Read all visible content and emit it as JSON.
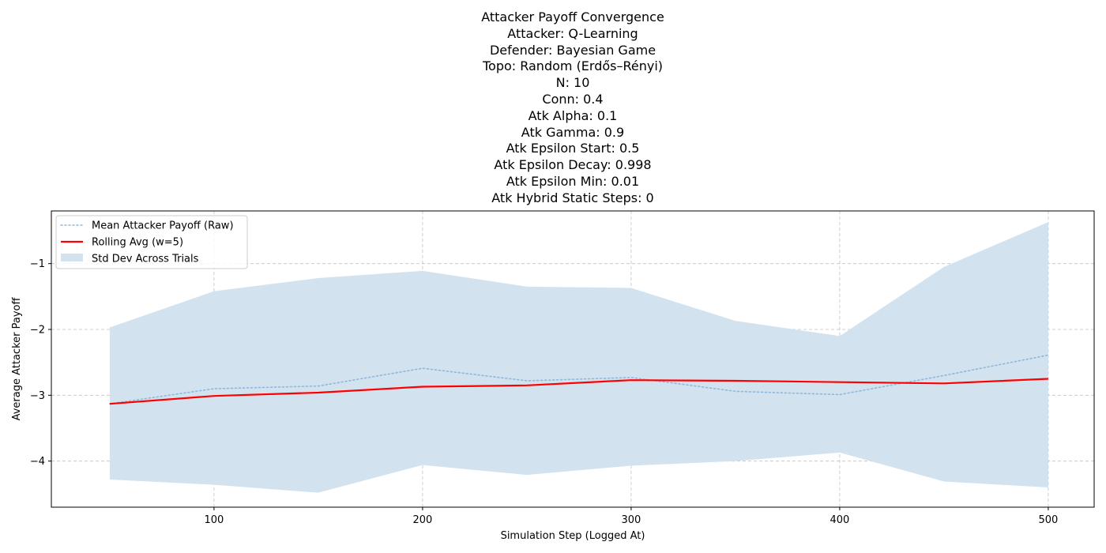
{
  "chart_data": {
    "type": "line",
    "title_lines": [
      "Attacker Payoff Convergence",
      "Attacker: Q-Learning",
      "Defender: Bayesian Game",
      "Topo: Random (Erdős–Rényi)",
      "N: 10",
      "Conn: 0.4",
      "Atk Alpha: 0.1",
      "Atk Gamma: 0.9",
      "Atk Epsilon Start: 0.5",
      "Atk Epsilon Decay: 0.998",
      "Atk Epsilon Min: 0.01",
      "Atk Hybrid Static Steps: 0"
    ],
    "xlabel": "Simulation Step (Logged At)",
    "ylabel": "Average Attacker Payoff",
    "xlim": [
      22,
      522
    ],
    "ylim": [
      -4.7,
      -0.2
    ],
    "xticks": [
      100,
      200,
      300,
      400,
      500
    ],
    "yticks": [
      -4,
      -3,
      -2,
      -1
    ],
    "ytick_labels": [
      "−4",
      "−3",
      "−2",
      "−1"
    ],
    "grid": true,
    "legend_position": "top-left",
    "x": [
      50,
      100,
      150,
      200,
      250,
      300,
      350,
      400,
      450,
      500
    ],
    "series": [
      {
        "name": "Mean Attacker Payoff (Raw)",
        "style": "dotted",
        "color": "#8fb8dc",
        "values": [
          -3.13,
          -2.9,
          -2.86,
          -2.59,
          -2.78,
          -2.73,
          -2.94,
          -2.99,
          -2.7,
          -2.39
        ]
      },
      {
        "name": "Rolling Avg (w=5)",
        "style": "solid",
        "color": "#ff0000",
        "values": [
          -3.13,
          -3.01,
          -2.96,
          -2.87,
          -2.85,
          -2.77,
          -2.78,
          -2.8,
          -2.82,
          -2.75
        ]
      }
    ],
    "band": {
      "name": "Std Dev Across Trials",
      "color": "#d2e3ef",
      "upper": [
        -1.97,
        -1.42,
        -1.22,
        -1.11,
        -1.35,
        -1.37,
        -1.87,
        -2.1,
        -1.05,
        -0.37
      ],
      "lower": [
        -4.28,
        -4.36,
        -4.48,
        -4.06,
        -4.21,
        -4.07,
        -4.0,
        -3.87,
        -4.31,
        -4.4
      ]
    }
  }
}
